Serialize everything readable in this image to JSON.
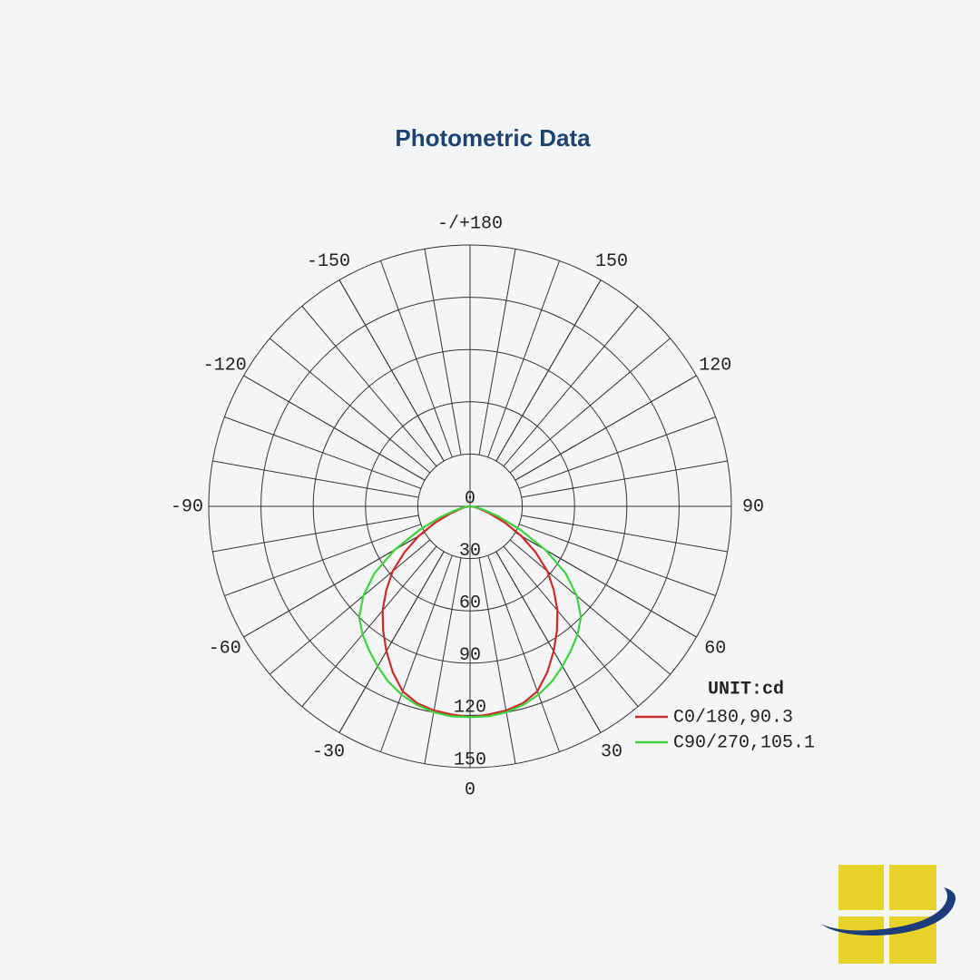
{
  "chart_data": {
    "type": "polar",
    "title": "Photometric Data",
    "unit_label": "UNIT:cd",
    "rlim": [
      0,
      150
    ],
    "rticks": [
      0,
      30,
      60,
      90,
      120,
      150
    ],
    "angle_ticks": [
      {
        "value": 180,
        "label": "-/+180"
      },
      150,
      120,
      90,
      60,
      30,
      0,
      -30,
      -60,
      -90,
      -120,
      -150
    ],
    "legend_position": "lower right",
    "theta": [
      -90,
      -85,
      -80,
      -75,
      -70,
      -65,
      -60,
      -55,
      -50,
      -45,
      -40,
      -35,
      -30,
      -25,
      -20,
      -15,
      -10,
      -5,
      0,
      5,
      10,
      15,
      20,
      25,
      30,
      35,
      40,
      45,
      50,
      55,
      60,
      65,
      70,
      75,
      80,
      85,
      90
    ],
    "series": [
      {
        "name": "C0/180,90.3",
        "color": "#cc2b2b",
        "values": [
          0,
          1,
          3,
          6,
          12,
          22,
          34,
          46,
          58,
          68,
          78,
          87,
          96,
          105,
          113,
          117,
          119,
          120,
          121,
          120,
          119,
          117,
          113,
          105,
          96,
          87,
          78,
          68,
          58,
          46,
          34,
          22,
          12,
          6,
          3,
          1,
          0
        ]
      },
      {
        "name": "C90/270,105.1",
        "color": "#3fd23f",
        "values": [
          0,
          1,
          4,
          9,
          18,
          32,
          50,
          67,
          80,
          90,
          96,
          101,
          106,
          111,
          115,
          118,
          120,
          121,
          121,
          121,
          120,
          118,
          115,
          111,
          106,
          101,
          96,
          90,
          80,
          67,
          50,
          32,
          18,
          9,
          4,
          1,
          0
        ]
      }
    ]
  }
}
